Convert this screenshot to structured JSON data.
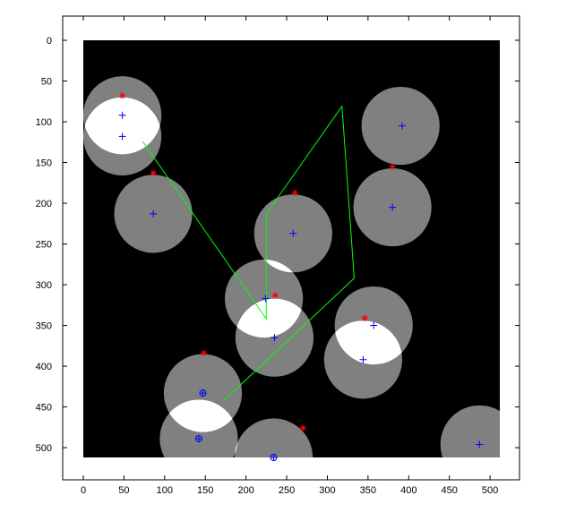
{
  "chart_data": {
    "type": "scatter",
    "title": "",
    "xlabel": "",
    "ylabel": "",
    "xlim": [
      -10,
      540
    ],
    "ylim": [
      -10,
      540
    ],
    "y_reversed": true,
    "grid": false,
    "x_ticks": [
      "0",
      "50",
      "100",
      "150",
      "200",
      "250",
      "300",
      "350",
      "400",
      "450",
      "500"
    ],
    "y_ticks": [
      "0",
      "50",
      "100",
      "150",
      "200",
      "250",
      "300",
      "350",
      "400",
      "450",
      "500"
    ],
    "image_extent": {
      "x": [
        0,
        512
      ],
      "y": [
        0,
        512
      ]
    },
    "colors": {
      "background": "#000000",
      "disk_gray": "#808080",
      "disk_overlap": "#ffffff",
      "plus_markers": "#0000ff",
      "star_markers": "#ff0000",
      "path_line": "#00ff00"
    },
    "disks_radius": 48,
    "disks": [
      {
        "x": 48,
        "y": 92
      },
      {
        "x": 48,
        "y": 118
      },
      {
        "x": 86,
        "y": 213
      },
      {
        "x": 390,
        "y": 105
      },
      {
        "x": 380,
        "y": 205
      },
      {
        "x": 258,
        "y": 237
      },
      {
        "x": 222,
        "y": 317
      },
      {
        "x": 235,
        "y": 365
      },
      {
        "x": 357,
        "y": 350
      },
      {
        "x": 344,
        "y": 392
      },
      {
        "x": 147,
        "y": 433
      },
      {
        "x": 142,
        "y": 489
      },
      {
        "x": 234,
        "y": 512
      },
      {
        "x": 487,
        "y": 496
      }
    ],
    "plus_points": [
      {
        "x": 48,
        "y": 92
      },
      {
        "x": 48,
        "y": 118
      },
      {
        "x": 86,
        "y": 213
      },
      {
        "x": 392,
        "y": 105
      },
      {
        "x": 380,
        "y": 205
      },
      {
        "x": 258,
        "y": 237
      },
      {
        "x": 224,
        "y": 317
      },
      {
        "x": 235,
        "y": 365
      },
      {
        "x": 357,
        "y": 350
      },
      {
        "x": 344,
        "y": 392
      },
      {
        "x": 147,
        "y": 433
      },
      {
        "x": 142,
        "y": 489
      },
      {
        "x": 234,
        "y": 512
      },
      {
        "x": 487,
        "y": 496
      }
    ],
    "circled_points": [
      {
        "x": 147,
        "y": 433
      },
      {
        "x": 142,
        "y": 489
      },
      {
        "x": 234,
        "y": 512
      }
    ],
    "star_points": [
      {
        "x": 48,
        "y": 68
      },
      {
        "x": 86,
        "y": 163
      },
      {
        "x": 380,
        "y": 155
      },
      {
        "x": 260,
        "y": 187
      },
      {
        "x": 236,
        "y": 313
      },
      {
        "x": 346,
        "y": 341
      },
      {
        "x": 148,
        "y": 384
      },
      {
        "x": 270,
        "y": 476
      }
    ],
    "path": [
      {
        "x": 73,
        "y": 124
      },
      {
        "x": 225,
        "y": 342
      },
      {
        "x": 225,
        "y": 213
      },
      {
        "x": 318,
        "y": 81
      },
      {
        "x": 333,
        "y": 292
      },
      {
        "x": 172,
        "y": 443
      }
    ]
  }
}
